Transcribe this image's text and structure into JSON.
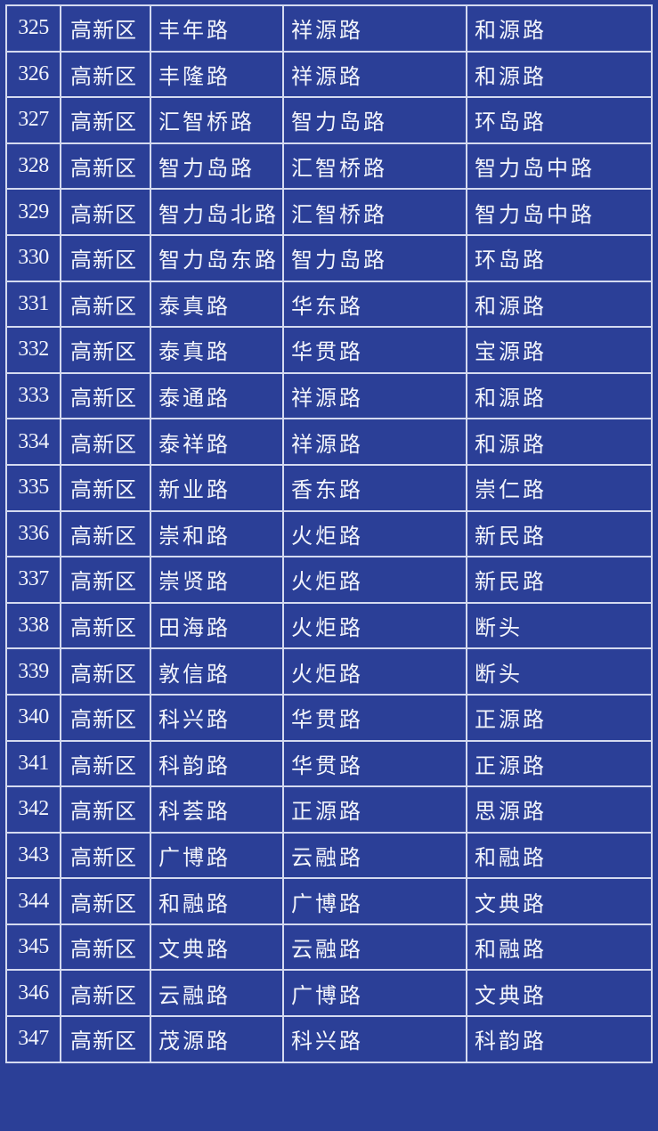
{
  "colors": {
    "background": "#2b3f97",
    "grid_line": "#d4daf0",
    "text": "#f2f4fb"
  },
  "rows": [
    {
      "no": "325",
      "district": "高新区",
      "road": "丰年路",
      "from": "祥源路",
      "to": "和源路"
    },
    {
      "no": "326",
      "district": "高新区",
      "road": "丰隆路",
      "from": "祥源路",
      "to": "和源路"
    },
    {
      "no": "327",
      "district": "高新区",
      "road": "汇智桥路",
      "from": "智力岛路",
      "to": "环岛路"
    },
    {
      "no": "328",
      "district": "高新区",
      "road": "智力岛路",
      "from": "汇智桥路",
      "to": "智力岛中路"
    },
    {
      "no": "329",
      "district": "高新区",
      "road": "智力岛北路",
      "from": "汇智桥路",
      "to": "智力岛中路"
    },
    {
      "no": "330",
      "district": "高新区",
      "road": "智力岛东路",
      "from": "智力岛路",
      "to": "环岛路"
    },
    {
      "no": "331",
      "district": "高新区",
      "road": "泰真路",
      "from": "华东路",
      "to": "和源路"
    },
    {
      "no": "332",
      "district": "高新区",
      "road": "泰真路",
      "from": "华贯路",
      "to": "宝源路"
    },
    {
      "no": "333",
      "district": "高新区",
      "road": "泰通路",
      "from": "祥源路",
      "to": "和源路"
    },
    {
      "no": "334",
      "district": "高新区",
      "road": "泰祥路",
      "from": "祥源路",
      "to": "和源路"
    },
    {
      "no": "335",
      "district": "高新区",
      "road": "新业路",
      "from": "香东路",
      "to": "崇仁路"
    },
    {
      "no": "336",
      "district": "高新区",
      "road": "崇和路",
      "from": "火炬路",
      "to": "新民路"
    },
    {
      "no": "337",
      "district": "高新区",
      "road": "崇贤路",
      "from": "火炬路",
      "to": "新民路"
    },
    {
      "no": "338",
      "district": "高新区",
      "road": "田海路",
      "from": "火炬路",
      "to": "断头"
    },
    {
      "no": "339",
      "district": "高新区",
      "road": "敦信路",
      "from": "火炬路",
      "to": "断头"
    },
    {
      "no": "340",
      "district": "高新区",
      "road": "科兴路",
      "from": "华贯路",
      "to": "正源路"
    },
    {
      "no": "341",
      "district": "高新区",
      "road": "科韵路",
      "from": "华贯路",
      "to": "正源路"
    },
    {
      "no": "342",
      "district": "高新区",
      "road": "科荟路",
      "from": "正源路",
      "to": "思源路"
    },
    {
      "no": "343",
      "district": "高新区",
      "road": "广博路",
      "from": "云融路",
      "to": "和融路"
    },
    {
      "no": "344",
      "district": "高新区",
      "road": "和融路",
      "from": "广博路",
      "to": "文典路"
    },
    {
      "no": "345",
      "district": "高新区",
      "road": "文典路",
      "from": "云融路",
      "to": "和融路"
    },
    {
      "no": "346",
      "district": "高新区",
      "road": "云融路",
      "from": "广博路",
      "to": "文典路"
    },
    {
      "no": "347",
      "district": "高新区",
      "road": "茂源路",
      "from": "科兴路",
      "to": "科韵路"
    }
  ]
}
